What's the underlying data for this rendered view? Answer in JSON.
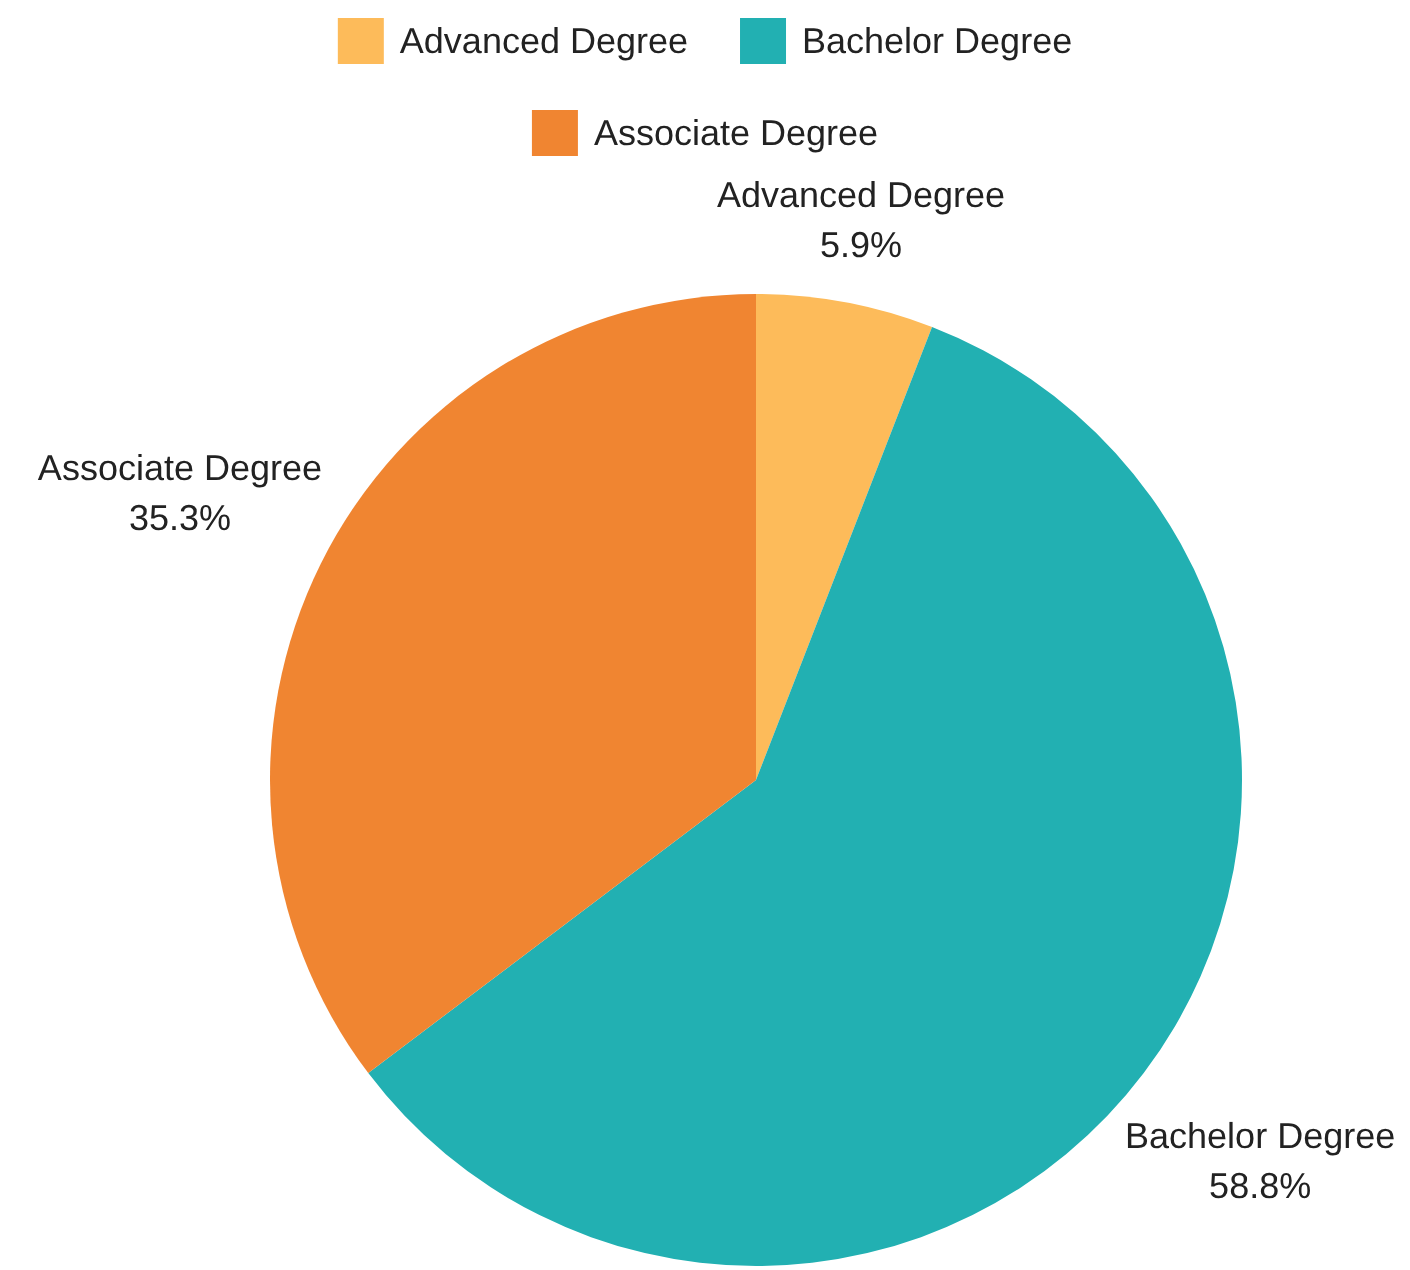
{
  "chart_data": {
    "type": "pie",
    "categories": [
      "Advanced Degree",
      "Bachelor Degree",
      "Associate Degree"
    ],
    "values": [
      5.9,
      58.8,
      35.3
    ],
    "colors": [
      "#fdbb5a",
      "#22b0b2",
      "#f08531"
    ],
    "value_labels": [
      "5.9%",
      "58.8%",
      "35.3%"
    ],
    "legend": "top"
  }
}
